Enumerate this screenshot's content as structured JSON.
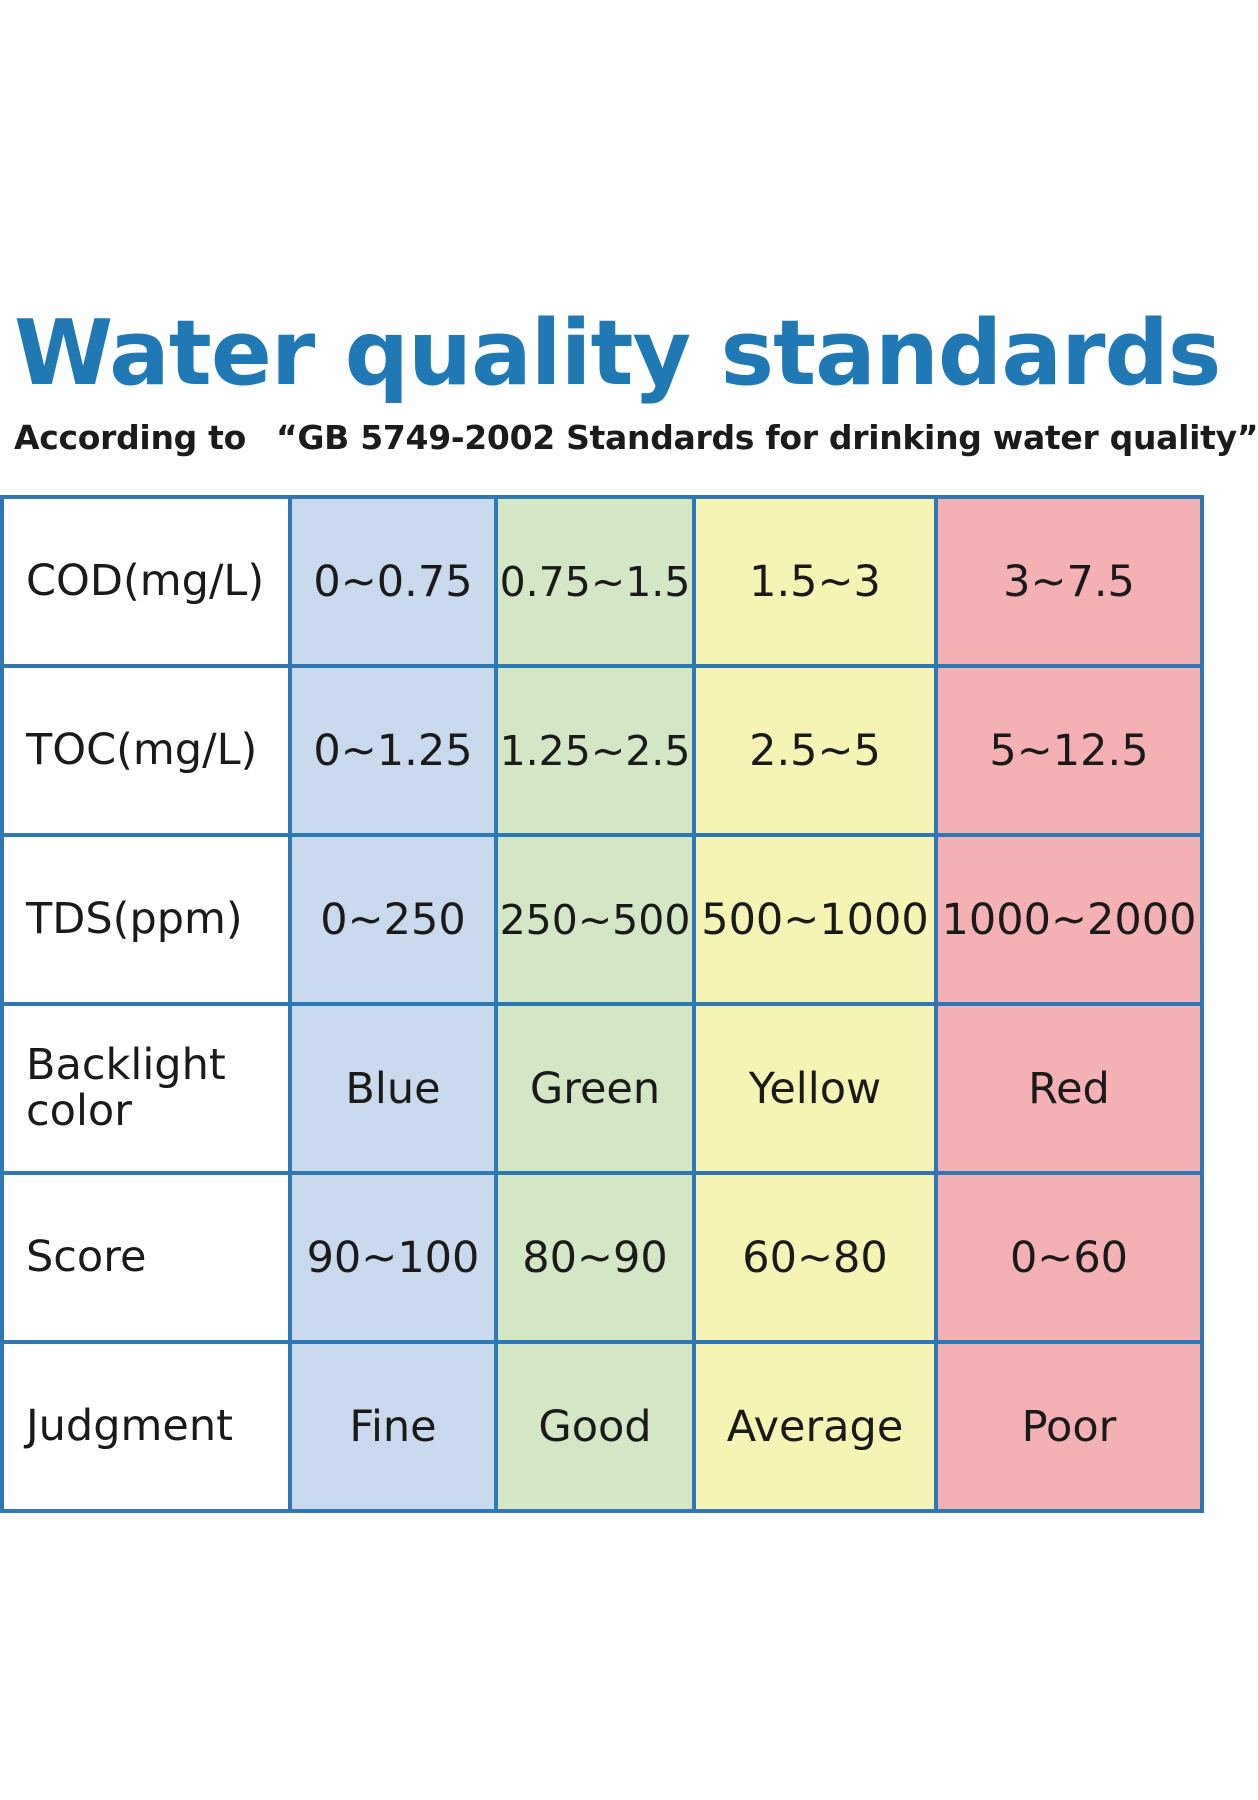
{
  "title": "Water quality standards",
  "subtitle": {
    "lead": "According to",
    "standard": "“GB 5749-2002 Standards for drinking water quality”"
  },
  "colors": {
    "title": "#2079b4",
    "grid_border": "#2f78b6",
    "levels": [
      "#c9daef",
      "#d3e7c4",
      "#f6f4b4",
      "#f4b1b3"
    ]
  },
  "chart_data": {
    "type": "table",
    "title": "Water quality standards",
    "subtitle": "According to “GB 5749-2002 Standards for drinking water quality”",
    "rows": [
      {
        "label": "COD(mg/L)",
        "cells": [
          "0~0.75",
          "0.75~1.5",
          "1.5~3",
          "3~7.5"
        ]
      },
      {
        "label": "TOC(mg/L)",
        "cells": [
          "0~1.25",
          "1.25~2.5",
          "2.5~5",
          "5~12.5"
        ]
      },
      {
        "label": "TDS(ppm)",
        "cells": [
          "0~250",
          "250~500",
          "500~1000",
          "1000~2000"
        ]
      },
      {
        "label": "Backlight color",
        "cells": [
          "Blue",
          "Green",
          "Yellow",
          "Red"
        ]
      },
      {
        "label": "Score",
        "cells": [
          "90~100",
          "80~90",
          "60~80",
          "0~60"
        ]
      },
      {
        "label": "Judgment",
        "cells": [
          "Fine",
          "Good",
          "Average",
          "Poor"
        ]
      }
    ]
  }
}
